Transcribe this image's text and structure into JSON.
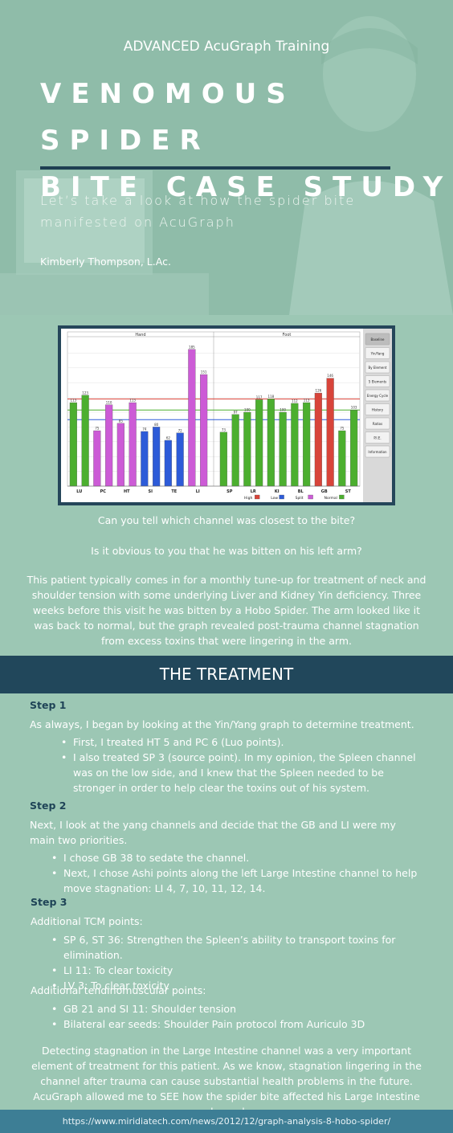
{
  "hero": {
    "subtitle": "ADVANCED AcuGraph Training",
    "title_line1": "VENOMOUS SPIDER",
    "title_line2": "BITE CASE STUDY",
    "lead_line1": "Let’s take a look at how the spider bite",
    "lead_line2": "manifested on AcuGraph",
    "author": "Kimberly Thompson, L.Ac."
  },
  "chart_data": {
    "type": "bar",
    "groups": [
      "Hand",
      "Foot"
    ],
    "categories": [
      "LU",
      "LU",
      "PC",
      "PC",
      "HT",
      "HT",
      "SI",
      "SI",
      "TE",
      "TE",
      "LI",
      "LI",
      "SP",
      "SP",
      "LR",
      "LR",
      "KI",
      "KI",
      "BL",
      "BL",
      "GB",
      "GB",
      "ST",
      "ST"
    ],
    "tick_labels": [
      "LU",
      "PC",
      "HT",
      "SI",
      "TE",
      "LI",
      "SP",
      "LR",
      "KI",
      "BL",
      "GB",
      "ST"
    ],
    "values": [
      113,
      123,
      75,
      110,
      85,
      113,
      74,
      80,
      62,
      72,
      185,
      151,
      73,
      97,
      100,
      117,
      118,
      100,
      112,
      113,
      126,
      146,
      75,
      103
    ],
    "bar_colors": [
      "green",
      "green",
      "magenta",
      "magenta",
      "magenta",
      "magenta",
      "blue",
      "blue",
      "blue",
      "blue",
      "magenta",
      "magenta",
      "green",
      "green",
      "green",
      "green",
      "green",
      "green",
      "green",
      "green",
      "red",
      "red",
      "green",
      "green"
    ],
    "reference_lines": {
      "high": 118,
      "mid": 103,
      "low": 90
    },
    "legend": [
      "High",
      "Low",
      "Split",
      "Normal"
    ],
    "colors": {
      "green": "#4caf2f",
      "magenta": "#cc5bd6",
      "blue": "#2d5bd8",
      "red": "#d8443a"
    },
    "side_buttons": [
      "Baseline",
      "Yin/Yang",
      "By Element",
      "5 Elements",
      "Energy Cycle",
      "History",
      "Ratios",
      "P.I.E.",
      "Information"
    ],
    "ylim": [
      0,
      200
    ]
  },
  "questions": {
    "q1": "Can you tell which channel was closest to the bite?",
    "q2": "Is it obvious to you that he was bitten on his left arm?",
    "intro": "This patient typically comes in for a monthly tune-up for treatment of neck and shoulder tension with some underlying Liver and Kidney Yin deficiency. Three weeks before this visit he was bitten by a Hobo Spider. The arm looked like it was back to normal, but the graph revealed post-trauma channel stagnation from excess toxins that were lingering in the arm."
  },
  "treatment": {
    "title": "THE TREATMENT",
    "step1": {
      "label": "Step 1",
      "text": "As always, I began by looking at the Yin/Yang graph to determine treatment.",
      "bullets": [
        "First, I treated HT 5 and PC 6 (Luo points).",
        "I also treated SP 3 (source point). In my opinion, the Spleen channel was on the low side, and I knew that the Spleen needed to be stronger in order to help clear the toxins out of his system."
      ]
    },
    "step2": {
      "label": "Step 2",
      "text": "Next, I look at the yang channels and decide that the GB and LI were my main two priorities.",
      "bullets": [
        "I chose GB 38 to sedate the channel.",
        "Next, I chose Ashi points along the left Large Intestine channel to help move stagnation: LI 4, 7, 10, 11, 12, 14."
      ]
    },
    "step3": {
      "label": "Step 3",
      "tcm_heading": "Additional TCM points:",
      "tcm_bullets": [
        "SP 6, ST 36: Strengthen the Spleen’s ability to transport toxins for elimination.",
        "LI 11: To clear toxicity",
        "LV 3: To clear toxicity"
      ],
      "tendino_heading": "Additional tendinomuscular points:",
      "tendino_bullets": [
        "GB 21 and SI 11: Shoulder tension",
        "Bilateral ear seeds: Shoulder Pain protocol from Auriculo 3D"
      ]
    },
    "conclusion": "Detecting stagnation in the Large Intestine channel was a very important element of treatment for this patient. As we know, stagnation lingering in the channel after trauma can cause substantial health problems in the future. AcuGraph allowed me to SEE how the spider bite affected his Large Intestine channel."
  },
  "footer": {
    "url": "https://www.miridiatech.com/news/2012/12/graph-analysis-8-hobo-spider/"
  }
}
